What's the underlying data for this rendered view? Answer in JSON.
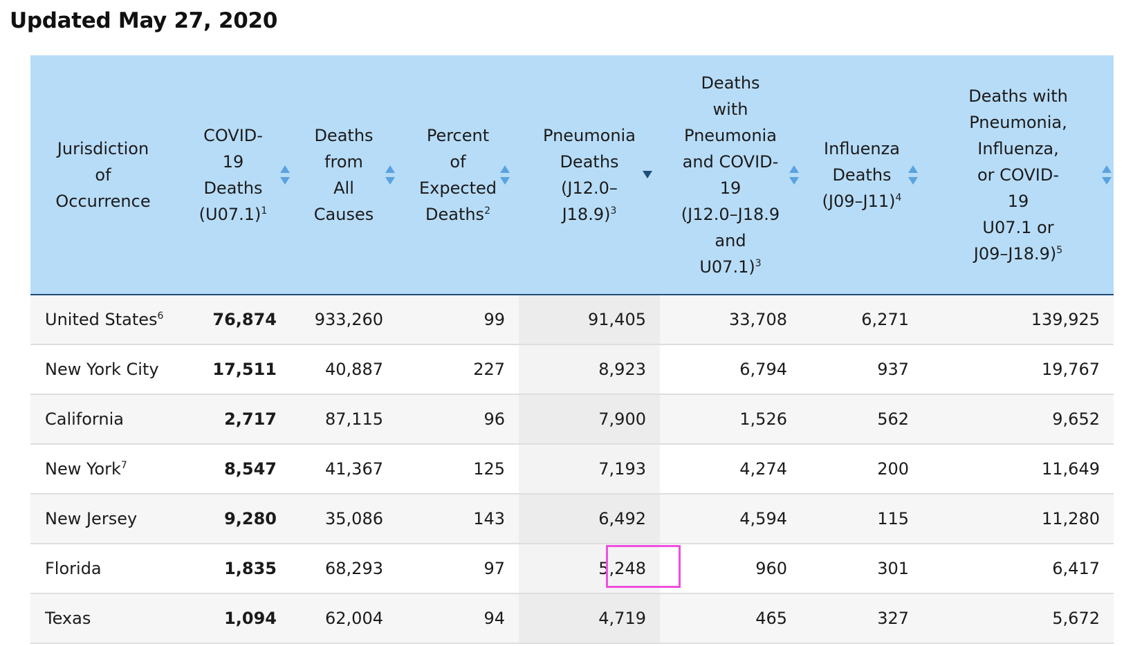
{
  "updated_label": "Updated May 27, 2020",
  "columns": [
    {
      "label": "Jurisdiction\nof\nOccurrence",
      "sup": "",
      "sortable": false
    },
    {
      "label": "COVID-\n19\nDeaths\n(U07.1)",
      "sup": "1",
      "sortable": true,
      "sort_state": "unsorted"
    },
    {
      "label": "Deaths\nfrom\nAll\nCauses",
      "sup": "",
      "sortable": true,
      "sort_state": "unsorted"
    },
    {
      "label": "Percent\nof\nExpected\nDeaths",
      "sup": "2",
      "sortable": true,
      "sort_state": "unsorted"
    },
    {
      "label": "Pneumonia\nDeaths\n(J12.0–\nJ18.9)",
      "sup": "3",
      "sortable": true,
      "sort_state": "descending"
    },
    {
      "label": "Deaths\nwith\nPneumonia\nand COVID-\n19\n(J12.0–J18.9\nand\nU07.1)",
      "sup": "3",
      "sortable": true,
      "sort_state": "unsorted"
    },
    {
      "label": "Influenza\nDeaths\n(J09–J11)",
      "sup": "4",
      "sortable": true,
      "sort_state": "unsorted"
    },
    {
      "label": "Deaths with\nPneumonia,\nInfluenza,\nor COVID-\n19\nU07.1 or\nJ09–J18.9)",
      "sup": "5",
      "sortable": true,
      "sort_state": "unsorted"
    }
  ],
  "rows": [
    {
      "jurisdiction": "United States",
      "sup": "6",
      "covid": "76,874",
      "all_causes": "933,260",
      "pct_expected": "99",
      "pneumonia": "91,405",
      "pneu_covid": "33,708",
      "influenza": "6,271",
      "pic": "139,925"
    },
    {
      "jurisdiction": "New York City",
      "sup": "",
      "covid": "17,511",
      "all_causes": "40,887",
      "pct_expected": "227",
      "pneumonia": "8,923",
      "pneu_covid": "6,794",
      "influenza": "937",
      "pic": "19,767"
    },
    {
      "jurisdiction": "California",
      "sup": "",
      "covid": "2,717",
      "all_causes": "87,115",
      "pct_expected": "96",
      "pneumonia": "7,900",
      "pneu_covid": "1,526",
      "influenza": "562",
      "pic": "9,652"
    },
    {
      "jurisdiction": "New York",
      "sup": "7",
      "covid": "8,547",
      "all_causes": "41,367",
      "pct_expected": "125",
      "pneumonia": "7,193",
      "pneu_covid": "4,274",
      "influenza": "200",
      "pic": "11,649"
    },
    {
      "jurisdiction": "New Jersey",
      "sup": "",
      "covid": "9,280",
      "all_causes": "35,086",
      "pct_expected": "143",
      "pneumonia": "6,492",
      "pneu_covid": "4,594",
      "influenza": "115",
      "pic": "11,280"
    },
    {
      "jurisdiction": "Florida",
      "sup": "",
      "covid": "1,835",
      "all_causes": "68,293",
      "pct_expected": "97",
      "pneumonia": "5,248",
      "pneu_covid": "960",
      "influenza": "301",
      "pic": "6,417"
    },
    {
      "jurisdiction": "Texas",
      "sup": "",
      "covid": "1,094",
      "all_causes": "62,004",
      "pct_expected": "94",
      "pneumonia": "4,719",
      "pneu_covid": "465",
      "influenza": "327",
      "pic": "5,672"
    }
  ],
  "icons": {
    "sort_unsorted": "sort-both-icon",
    "sort_descending": "sort-descending-icon"
  },
  "colors": {
    "header_bg": "#b7dcf7",
    "header_border": "#1f4e79",
    "sort_icon": "#5aa2df",
    "sort_icon_active": "#1f4e79",
    "highlight": "#ee4fe0"
  }
}
